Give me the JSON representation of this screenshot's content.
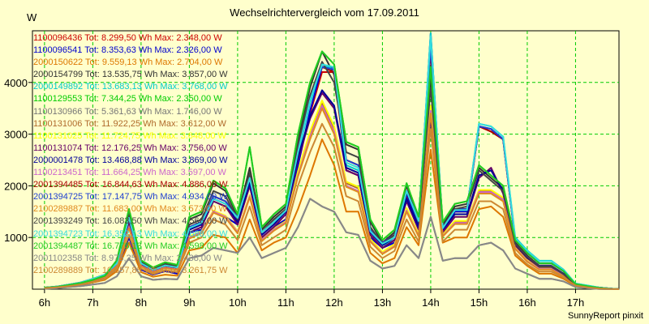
{
  "chart_data": {
    "type": "line",
    "title": "Wechselrichtervergleich vom 17.09.2011",
    "ylabel": "W",
    "footer": "SunnyReport pinxit",
    "ylim": [
      0,
      5000
    ],
    "yticks": [
      1000,
      2000,
      3000,
      4000
    ],
    "xlim": [
      5.75,
      17.9
    ],
    "xticks": [
      6,
      7,
      8,
      9,
      10,
      11,
      12,
      13,
      14,
      15,
      16,
      17
    ],
    "xtick_labels": [
      "6h",
      "7h",
      "8h",
      "9h",
      "10h",
      "11h",
      "12h",
      "13h",
      "14h",
      "15h",
      "16h",
      "17h"
    ],
    "grid": true,
    "legend_location": "top-left",
    "x": [
      6.0,
      6.25,
      6.5,
      6.75,
      7.0,
      7.25,
      7.5,
      7.75,
      8.0,
      8.25,
      8.5,
      8.75,
      9.0,
      9.25,
      9.5,
      9.75,
      10.0,
      10.25,
      10.5,
      10.75,
      11.0,
      11.25,
      11.5,
      11.75,
      12.0,
      12.25,
      12.5,
      12.75,
      13.0,
      13.25,
      13.5,
      13.75,
      14.0,
      14.25,
      14.5,
      14.75,
      15.0,
      15.25,
      15.5,
      15.75,
      16.0,
      16.25,
      16.5,
      16.75,
      17.0,
      17.25,
      17.5,
      17.75,
      17.9
    ],
    "series": [
      {
        "name": "1100096436",
        "label": "1100096436 Tot: 8.299,50 Wh Max: 2.348,00 W",
        "color": "#cc0000",
        "values": [
          20,
          40,
          70,
          100,
          150,
          200,
          400,
          1000,
          380,
          280,
          350,
          300,
          1100,
          1150,
          1500,
          1400,
          1250,
          2000,
          1000,
          1200,
          1350,
          2400,
          3400,
          4200,
          4200,
          2300,
          2200,
          1000,
          800,
          900,
          1800,
          1250,
          4300,
          1150,
          1500,
          1500,
          3150,
          3050,
          2900,
          950,
          700,
          500,
          500,
          350,
          100,
          60,
          30,
          10,
          0
        ]
      },
      {
        "name": "1100096541",
        "label": "1100096541 Tot: 8.353,63 Wh Max: 2.326,00 W",
        "color": "#0000cc",
        "values": [
          20,
          40,
          70,
          100,
          150,
          200,
          400,
          1000,
          380,
          280,
          350,
          300,
          1100,
          1150,
          1500,
          1400,
          1250,
          2050,
          1000,
          1200,
          1350,
          2400,
          3450,
          4300,
          4300,
          2300,
          2200,
          1000,
          800,
          900,
          1850,
          1250,
          4950,
          1150,
          1500,
          1500,
          3150,
          3100,
          2900,
          950,
          700,
          500,
          500,
          350,
          100,
          60,
          30,
          10,
          0
        ]
      },
      {
        "name": "2000150622",
        "label": "2000150622 Tot: 9.559,13 Wh Max: 2.704,00 W",
        "color": "#dd7700",
        "values": [
          20,
          30,
          50,
          80,
          130,
          180,
          350,
          900,
          330,
          240,
          280,
          260,
          750,
          800,
          1050,
          1000,
          700,
          1350,
          750,
          900,
          1000,
          1550,
          2200,
          2900,
          2400,
          1500,
          1500,
          700,
          500,
          600,
          1200,
          850,
          2700,
          900,
          1000,
          1000,
          1550,
          1600,
          1400,
          650,
          450,
          300,
          300,
          200,
          60,
          30,
          10,
          0,
          0
        ]
      },
      {
        "name": "2000154799",
        "label": "2000154799 Tot: 13.535,75 Wh Max: 3.857,00 W",
        "color": "#333333",
        "values": [
          30,
          45,
          80,
          120,
          180,
          260,
          550,
          1500,
          550,
          400,
          500,
          450,
          1350,
          1450,
          2050,
          1900,
          1400,
          2350,
          1150,
          1400,
          1600,
          2900,
          3900,
          4600,
          4150,
          2800,
          2700,
          1300,
          900,
          1100,
          2000,
          1350,
          4050,
          1250,
          1600,
          1650,
          2350,
          2150,
          1950,
          900,
          650,
          450,
          450,
          300,
          90,
          50,
          20,
          5,
          0
        ]
      },
      {
        "name": "2000149892",
        "label": "2000149892 Tot: 13.683,13 Wh Max: 3.768,00 W",
        "color": "#00cccc",
        "values": [
          30,
          45,
          80,
          120,
          180,
          260,
          500,
          1350,
          500,
          350,
          450,
          400,
          1200,
          1300,
          1700,
          1600,
          1400,
          2200,
          1100,
          1300,
          1500,
          2600,
          3600,
          4350,
          4250,
          2400,
          2300,
          1100,
          850,
          950,
          1900,
          1300,
          4950,
          1200,
          1550,
          1550,
          3200,
          3150,
          2950,
          1000,
          750,
          550,
          550,
          380,
          110,
          70,
          30,
          10,
          0
        ]
      },
      {
        "name": "1100129553",
        "label": "1100129553 Tot: 7.344,25 Wh Max: 2.350,00 W",
        "color": "#00cc00",
        "values": [
          30,
          45,
          80,
          120,
          180,
          260,
          560,
          1550,
          560,
          420,
          520,
          470,
          1400,
          1500,
          2100,
          1950,
          1450,
          2750,
          1200,
          1450,
          1650,
          3000,
          4000,
          4600,
          4350,
          2850,
          2750,
          1350,
          950,
          1150,
          2050,
          1400,
          4300,
          1300,
          1650,
          1700,
          2400,
          2200,
          2000,
          950,
          700,
          500,
          500,
          350,
          100,
          60,
          25,
          5,
          0
        ]
      },
      {
        "name": "1100130966",
        "label": "1100130966 Tot: 5.361,63 Wh Max: 1.746,00 W",
        "color": "#777777",
        "values": [
          10,
          20,
          40,
          60,
          90,
          120,
          250,
          600,
          250,
          180,
          200,
          190,
          600,
          650,
          800,
          750,
          700,
          1000,
          600,
          700,
          800,
          1200,
          1750,
          1600,
          1500,
          1100,
          1050,
          550,
          400,
          450,
          850,
          600,
          1400,
          550,
          600,
          600,
          850,
          900,
          750,
          400,
          300,
          200,
          200,
          150,
          40,
          20,
          5,
          0,
          0
        ]
      },
      {
        "name": "1100131006",
        "label": "1100131006 Tot: 11.922,25 Wh Max: 3.612,00 W",
        "color": "#b06a2c",
        "values": [
          25,
          40,
          70,
          110,
          170,
          240,
          450,
          1200,
          450,
          330,
          420,
          380,
          1000,
          1100,
          1500,
          1400,
          1100,
          1800,
          950,
          1150,
          1300,
          2250,
          3000,
          3600,
          3100,
          2050,
          1950,
          950,
          700,
          850,
          1550,
          1050,
          3500,
          1050,
          1300,
          1300,
          1900,
          1900,
          1750,
          800,
          550,
          400,
          400,
          270,
          80,
          40,
          15,
          5,
          0
        ]
      },
      {
        "name": "1100131025",
        "label": "1100131025 Tot: 11.724,75 Wh Max: 3.648,00 W",
        "color": "#ffff00",
        "values": [
          25,
          40,
          70,
          110,
          170,
          240,
          460,
          1220,
          460,
          340,
          430,
          390,
          1020,
          1120,
          1520,
          1420,
          1120,
          1820,
          970,
          1170,
          1320,
          2280,
          3050,
          3650,
          3150,
          2080,
          1980,
          970,
          720,
          870,
          1570,
          1070,
          3550,
          1070,
          1320,
          1320,
          1920,
          1920,
          1770,
          820,
          570,
          410,
          410,
          280,
          80,
          40,
          15,
          5,
          0
        ]
      },
      {
        "name": "1100131074",
        "label": "1100131074 Tot: 12.176,25 Wh Max: 3.756,00 W",
        "color": "#660066",
        "values": [
          25,
          40,
          70,
          110,
          170,
          240,
          480,
          1300,
          480,
          360,
          450,
          410,
          1100,
          1200,
          1700,
          1600,
          1250,
          2000,
          1000,
          1200,
          1450,
          2500,
          3300,
          3800,
          3500,
          2300,
          2200,
          1050,
          800,
          950,
          1700,
          1150,
          3300,
          1100,
          1400,
          1400,
          2150,
          2350,
          1850,
          850,
          600,
          430,
          430,
          290,
          85,
          45,
          15,
          5,
          0
        ]
      },
      {
        "name": "2000001478",
        "label": "2000001478 Tot: 13.468,88 Wh Max: 3.869,00 W",
        "color": "#000099",
        "values": [
          30,
          45,
          80,
          120,
          180,
          250,
          500,
          1400,
          500,
          380,
          470,
          430,
          1150,
          1250,
          1750,
          1650,
          1300,
          2050,
          1050,
          1250,
          1500,
          2550,
          3350,
          3850,
          3550,
          2350,
          2250,
          1100,
          850,
          1000,
          1750,
          1200,
          3350,
          1150,
          1450,
          1450,
          2200,
          2300,
          1900,
          880,
          620,
          450,
          450,
          300,
          90,
          50,
          20,
          5,
          0
        ]
      },
      {
        "name": "1100213451",
        "label": "1100213451 Tot: 11.664,25 Wh Max: 3.597,00 W",
        "color": "#cc66cc",
        "values": [
          25,
          40,
          70,
          110,
          170,
          240,
          450,
          1200,
          450,
          330,
          420,
          380,
          1000,
          1100,
          1500,
          1400,
          1100,
          1800,
          950,
          1150,
          1300,
          2200,
          2950,
          3550,
          3050,
          2000,
          1900,
          930,
          690,
          830,
          1520,
          1030,
          3450,
          1030,
          1280,
          1280,
          1880,
          1880,
          1730,
          790,
          540,
          390,
          390,
          260,
          80,
          40,
          15,
          5,
          0
        ]
      },
      {
        "name": "2001394485",
        "label": "2001394485 Tot: 16.844,63 Wh Max: 4.886,00 W",
        "color": "#aa0000",
        "values": [
          30,
          50,
          90,
          130,
          200,
          280,
          500,
          1400,
          500,
          380,
          470,
          430,
          1200,
          1300,
          1800,
          1700,
          1400,
          2150,
          1100,
          1300,
          1550,
          2700,
          3700,
          4300,
          4200,
          2500,
          2400,
          1150,
          900,
          1050,
          1900,
          1350,
          4600,
          1200,
          1550,
          1550,
          3150,
          3050,
          2900,
          950,
          700,
          500,
          500,
          350,
          100,
          60,
          30,
          10,
          0
        ]
      },
      {
        "name": "2001394725",
        "label": "2001394725 Tot: 17.147,75 Wh Max: 4.934,00 W",
        "color": "#1f3fd0",
        "values": [
          30,
          50,
          90,
          130,
          200,
          280,
          500,
          1400,
          500,
          380,
          470,
          430,
          1200,
          1300,
          1800,
          1700,
          1400,
          2150,
          1100,
          1300,
          1550,
          2700,
          3700,
          4300,
          4250,
          2500,
          2400,
          1150,
          900,
          1050,
          1900,
          1350,
          4700,
          1200,
          1550,
          1550,
          3150,
          3100,
          2900,
          950,
          700,
          500,
          500,
          350,
          100,
          60,
          30,
          10,
          0
        ]
      },
      {
        "name": "2100289887",
        "label": "2100289887 Tot: 11.683,00 Wh Max: 3.573,00 W",
        "color": "#e08a20",
        "values": [
          25,
          40,
          70,
          110,
          170,
          240,
          440,
          1180,
          440,
          320,
          410,
          370,
          980,
          1080,
          1480,
          1380,
          1080,
          1780,
          930,
          1130,
          1280,
          2180,
          2900,
          3500,
          3000,
          1980,
          1880,
          920,
          680,
          820,
          1500,
          1020,
          3400,
          1020,
          1260,
          1260,
          1850,
          1850,
          1700,
          780,
          530,
          380,
          380,
          250,
          80,
          40,
          15,
          5,
          0
        ]
      },
      {
        "name": "2001393249",
        "label": "2001393249 Tot: 16.083,50 Wh Max: 4.566,00 W",
        "color": "#444444",
        "values": [
          30,
          45,
          80,
          120,
          180,
          260,
          520,
          1450,
          520,
          390,
          480,
          440,
          1250,
          1350,
          1900,
          1800,
          1350,
          2250,
          1100,
          1350,
          1550,
          2800,
          3750,
          4400,
          4000,
          2650,
          2550,
          1200,
          880,
          1050,
          1900,
          1300,
          3900,
          1200,
          1550,
          1600,
          2300,
          2100,
          1900,
          880,
          630,
          440,
          440,
          290,
          90,
          50,
          20,
          5,
          0
        ]
      },
      {
        "name": "2001394723",
        "label": "2001394723 Tot: 16.352,13 Wh Max: 4.688,00 W",
        "color": "#33dddd",
        "values": [
          30,
          50,
          90,
          130,
          200,
          280,
          500,
          1380,
          500,
          370,
          460,
          420,
          1180,
          1280,
          1750,
          1650,
          1380,
          2150,
          1100,
          1300,
          1520,
          2650,
          3650,
          4350,
          4300,
          2450,
          2350,
          1120,
          880,
          1000,
          1900,
          1320,
          4900,
          1180,
          1530,
          1530,
          3200,
          3150,
          2950,
          980,
          740,
          540,
          540,
          370,
          110,
          70,
          30,
          10,
          0
        ]
      },
      {
        "name": "2001394487",
        "label": "2001394487 Tot: 16.776,13 Wh Max: 4.598,00 W",
        "color": "#22cc22",
        "values": [
          30,
          45,
          80,
          120,
          180,
          260,
          560,
          1550,
          560,
          420,
          520,
          470,
          1400,
          1500,
          2100,
          1950,
          1450,
          2750,
          1200,
          1450,
          1650,
          3000,
          4000,
          4600,
          4350,
          2850,
          2750,
          1350,
          950,
          1150,
          2050,
          1400,
          4300,
          1300,
          1650,
          1700,
          2400,
          2200,
          2000,
          950,
          700,
          500,
          500,
          350,
          100,
          60,
          25,
          5,
          0
        ]
      },
      {
        "name": "2001102358",
        "label": "2001102358 Tot: 8.975,25 Wh Max: 2.438,00 W",
        "color": "#888888",
        "values": [
          10,
          20,
          40,
          60,
          90,
          120,
          250,
          600,
          250,
          180,
          200,
          190,
          600,
          650,
          800,
          750,
          700,
          1000,
          600,
          700,
          800,
          1200,
          1750,
          1600,
          1500,
          1100,
          1050,
          550,
          400,
          450,
          850,
          600,
          1400,
          550,
          600,
          600,
          850,
          900,
          750,
          400,
          300,
          200,
          200,
          150,
          40,
          20,
          5,
          0,
          0
        ]
      },
      {
        "name": "2100289889",
        "label": "2100289889 Tot: 10.857,85 Wh Max: 3.261,75 W",
        "color": "#cc8833",
        "values": [
          20,
          35,
          60,
          90,
          140,
          200,
          400,
          1050,
          400,
          290,
          370,
          330,
          900,
          1000,
          1350,
          1250,
          950,
          1600,
          850,
          1000,
          1150,
          2000,
          2650,
          3200,
          2750,
          1800,
          1700,
          820,
          600,
          740,
          1350,
          920,
          3100,
          920,
          1150,
          1150,
          1700,
          1700,
          1550,
          700,
          480,
          340,
          340,
          230,
          70,
          35,
          12,
          4,
          0
        ]
      }
    ]
  }
}
